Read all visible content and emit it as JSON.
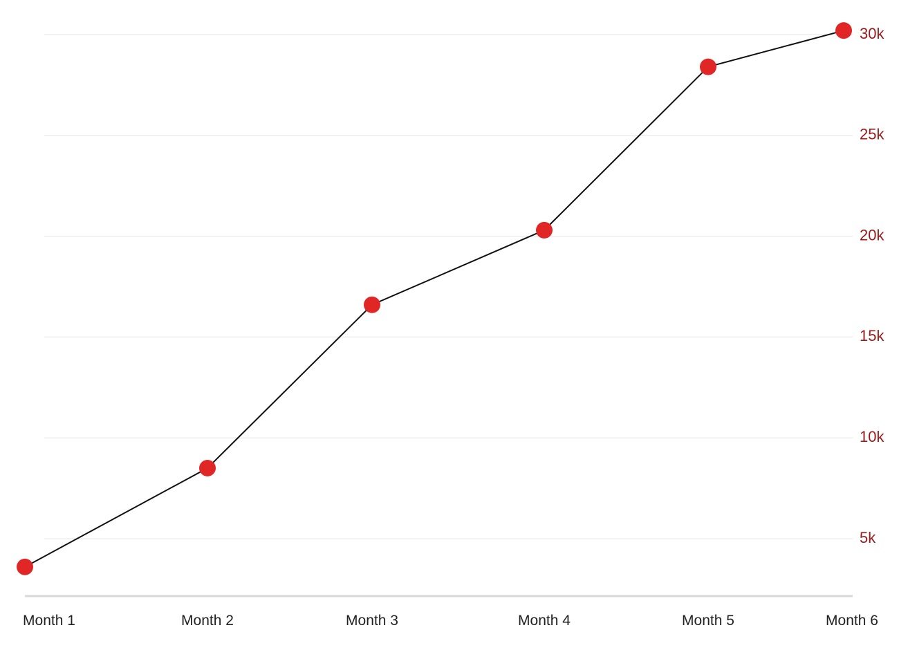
{
  "chart_data": {
    "type": "line",
    "categories": [
      "Month 1",
      "Month 2",
      "Month 3",
      "Month 4",
      "Month 5",
      "Month 6"
    ],
    "series": [
      {
        "values": [
          3600,
          8500,
          16600,
          20300,
          28400,
          30200
        ]
      }
    ],
    "y_ticks": [
      {
        "value": 5000,
        "label": "5k"
      },
      {
        "value": 10000,
        "label": "10k"
      },
      {
        "value": 15000,
        "label": "15k"
      },
      {
        "value": 20000,
        "label": "20k"
      },
      {
        "value": 25000,
        "label": "25k"
      },
      {
        "value": 30000,
        "label": "30k"
      }
    ],
    "ylim": [
      2800,
      31000
    ],
    "y_axis_side": "right",
    "grid": true,
    "colors": {
      "line": "#111111",
      "points": "#e12626",
      "y_tick_labels": "#9b1b1b",
      "grid": "#e6e6e6",
      "baseline": "#d9d9d9"
    }
  }
}
